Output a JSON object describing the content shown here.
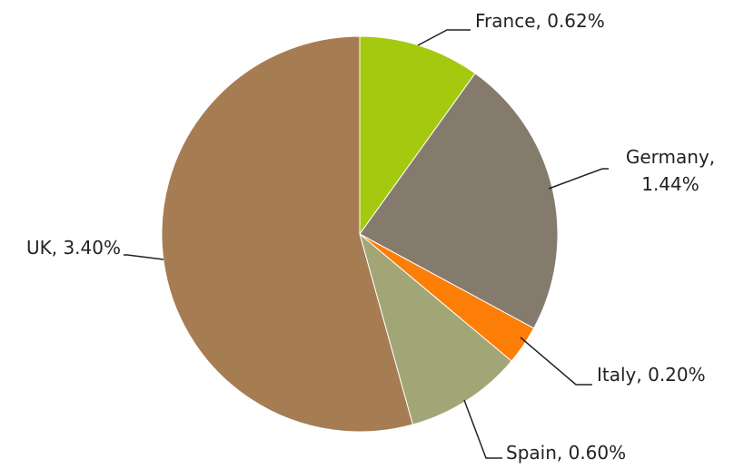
{
  "chart_data": {
    "type": "pie",
    "values": [
      0.62,
      1.44,
      0.2,
      0.6,
      3.4
    ],
    "value_labels": [
      "France, 0.62%",
      "Germany, 1.44%",
      "Italy, 0.20%",
      "Spain, 0.60%",
      "UK, 3.40%"
    ],
    "colors": [
      "#a5c90f",
      "#857b6d",
      "#fd7e07",
      "#a2a576",
      "#a67c52"
    ]
  }
}
